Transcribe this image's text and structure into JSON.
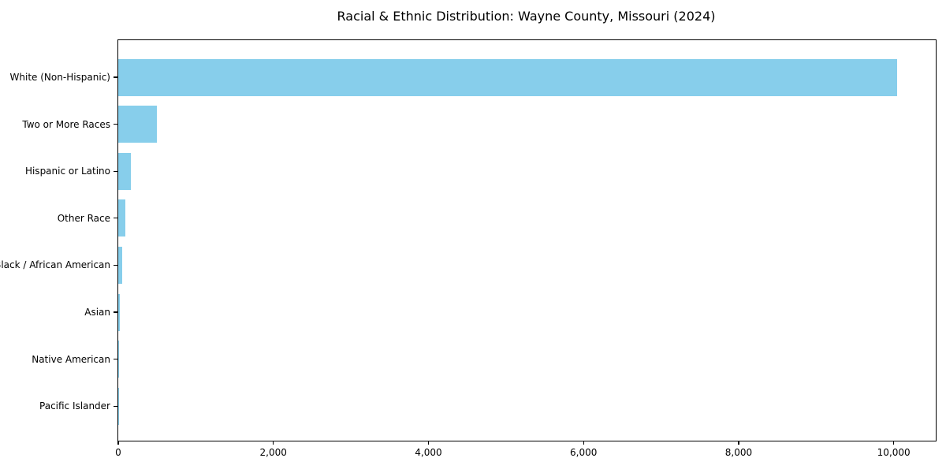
{
  "title": "Racial & Ethnic Distribution: Wayne County, Missouri (2024)",
  "chart_data": {
    "type": "bar",
    "orientation": "horizontal",
    "title": "Racial & Ethnic Distribution: Wayne County, Missouri (2024)",
    "categories": [
      "White (Non-Hispanic)",
      "Two or More Races",
      "Hispanic or Latino",
      "Other Race",
      "Black / African American",
      "Asian",
      "Native American",
      "Pacific Islander"
    ],
    "values": [
      10040,
      500,
      160,
      90,
      48,
      20,
      5,
      2
    ],
    "bar_color": "#87CEEB",
    "xlabel": "",
    "ylabel": "",
    "xlim": [
      0,
      10542
    ],
    "x_ticks": [
      0,
      2000,
      4000,
      6000,
      8000,
      10000
    ],
    "x_tick_labels": [
      "0",
      "2,000",
      "4,000",
      "6,000",
      "8,000",
      "10,000"
    ],
    "grid": false,
    "legend_position": "none",
    "frame": "full-box"
  }
}
